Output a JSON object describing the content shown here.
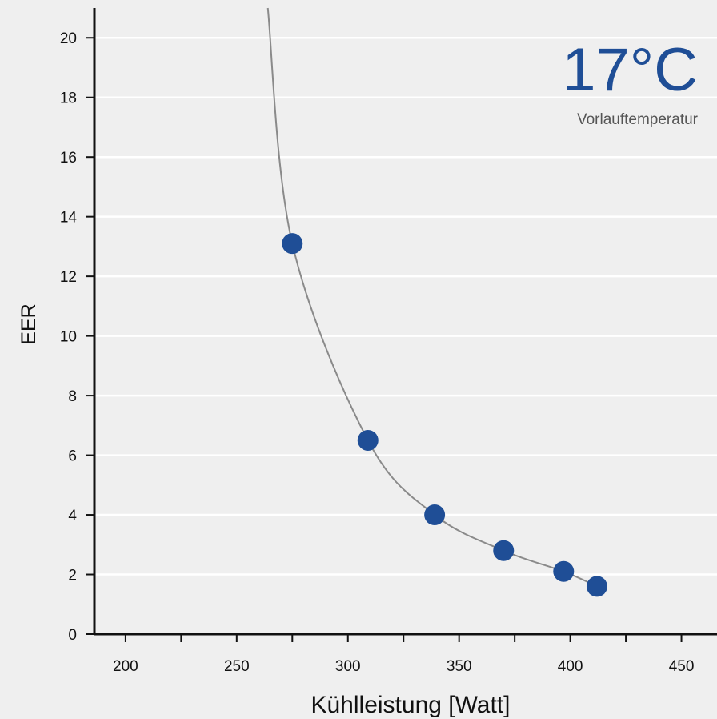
{
  "chart_data": {
    "type": "line",
    "xlabel": "Kühlleistung [Watt]",
    "ylabel": "EER",
    "xlim": [
      186,
      466
    ],
    "ylim": [
      0,
      21
    ],
    "xticks": [
      200,
      250,
      300,
      350,
      400,
      450
    ],
    "yticks": [
      0,
      2,
      4,
      6,
      8,
      10,
      12,
      14,
      16,
      18,
      20
    ],
    "grid": "horizontal",
    "points": [
      {
        "x": 275,
        "y": 13.1
      },
      {
        "x": 309,
        "y": 6.5
      },
      {
        "x": 339,
        "y": 4.0
      },
      {
        "x": 370,
        "y": 2.8
      },
      {
        "x": 397,
        "y": 2.1
      },
      {
        "x": 412,
        "y": 1.6
      }
    ],
    "curve_top": {
      "x": 264,
      "y": 21
    },
    "annotation": {
      "value": "17°C",
      "caption": "Vorlauftemperatur"
    }
  },
  "colors": {
    "background": "#efefef",
    "grid": "#ffffff",
    "axis": "#111111",
    "marker": "#1f4e96",
    "curve": "#8a8a8a",
    "annotation": "#1f4e96",
    "caption": "#555555"
  }
}
